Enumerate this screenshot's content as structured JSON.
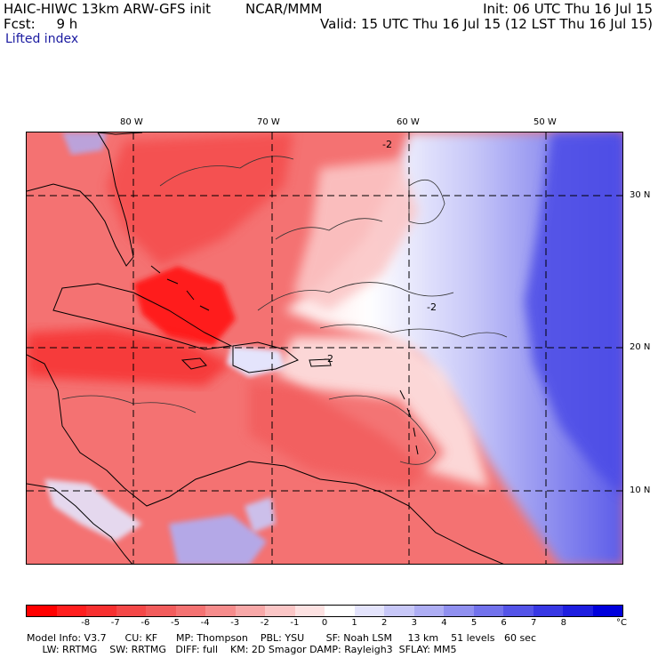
{
  "header": {
    "model_title": "HAIC-HIWC 13km ARW-GFS init",
    "org": "NCAR/MMM",
    "init": "Init: 06 UTC Thu 16 Jul 15",
    "forecast": "Fcst:     9 h",
    "valid": "Valid: 15 UTC Thu 16 Jul 15 (12 LST Thu 16 Jul 15)",
    "field": "Lifted index"
  },
  "map": {
    "lon_labels": [
      "80 W",
      "70 W",
      "60 W",
      "50 W"
    ],
    "lat_labels": [
      "30 N",
      "20 N",
      "10 N"
    ],
    "contour_label": "-2",
    "colors": {
      "deep_red": "#ff0000",
      "mid_red": "#f24e4e",
      "light_red": "#f7a0a0",
      "pale_red": "#fbd0d0",
      "white": "#ffffff",
      "pale_blue": "#d8d8fb",
      "light_blue": "#a8a8f4",
      "mid_blue": "#6666ee",
      "deep_blue": "#2222e0"
    }
  },
  "colorbar": {
    "ticks": [
      "-8",
      "-7",
      "-6",
      "-5",
      "-4",
      "-3",
      "-2",
      "-1",
      "0",
      "1",
      "2",
      "3",
      "4",
      "5",
      "6",
      "7",
      "8"
    ],
    "unit": "°C",
    "colors": [
      "#ff0000",
      "#ff1e1e",
      "#f73030",
      "#f44848",
      "#f25c5c",
      "#f47272",
      "#f68c8c",
      "#f8a8a8",
      "#fbc6c6",
      "#fde2e2",
      "#ffffff",
      "#e4e4fc",
      "#c8c8f8",
      "#aeaef4",
      "#9090f0",
      "#7272ec",
      "#5454e8",
      "#3838e4",
      "#1e1ee0",
      "#0000dc"
    ]
  },
  "footer": {
    "line1": "Model Info: V3.7      CU: KF      MP: Thompson    PBL: YSU       SF: Noah LSM     13 km    51 levels   60 sec",
    "line2": "     LW: RRTMG    SW: RRTMG   DIFF: full    KM: 2D Smagor DAMP: Rayleigh3  SFLAY: MM5"
  }
}
